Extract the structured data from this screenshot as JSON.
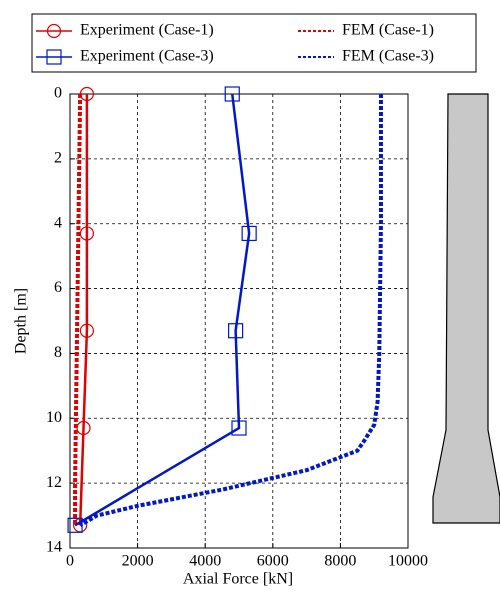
{
  "chart_data": {
    "type": "line",
    "x_label": "Axial Force [kN]",
    "y_label": "Depth [m]",
    "xlim": [
      0,
      10000
    ],
    "xticks": [
      0,
      2000,
      4000,
      6000,
      8000,
      10000
    ],
    "ylim": [
      0,
      14
    ],
    "yticks": [
      0,
      2,
      4,
      6,
      8,
      10,
      12,
      14
    ],
    "y_inverted": true,
    "grid": true,
    "series": [
      {
        "name": "Experiment (Case-1)",
        "color": "#e00000",
        "line_style": "solid",
        "marker": "circle",
        "x": [
          500,
          500,
          500,
          400,
          300
        ],
        "values": [
          0,
          4.3,
          7.3,
          10.3,
          13.3
        ]
      },
      {
        "name": "FEM (Case-1)",
        "color": "#e00000",
        "line_style": "dashed",
        "marker": "none",
        "x": [
          300,
          250,
          200,
          150,
          150
        ],
        "values": [
          0,
          4,
          8,
          12,
          13.3
        ]
      },
      {
        "name": "Experiment (Case-3)",
        "color": "#0018c8",
        "line_style": "solid",
        "marker": "square",
        "x": [
          4800,
          5300,
          4900,
          5000,
          150
        ],
        "values": [
          0,
          4.3,
          7.3,
          10.3,
          13.3
        ]
      },
      {
        "name": "FEM (Case-3)",
        "color": "#0018c8",
        "line_style": "dashed",
        "marker": "none",
        "x": [
          9200,
          9200,
          9150,
          9100,
          9000,
          8700,
          8500,
          7000,
          4500,
          2000,
          800,
          300
        ],
        "values": [
          0,
          4,
          8,
          9.5,
          10.2,
          10.7,
          11,
          11.6,
          12.2,
          12.7,
          13.0,
          13.3
        ]
      }
    ]
  }
}
